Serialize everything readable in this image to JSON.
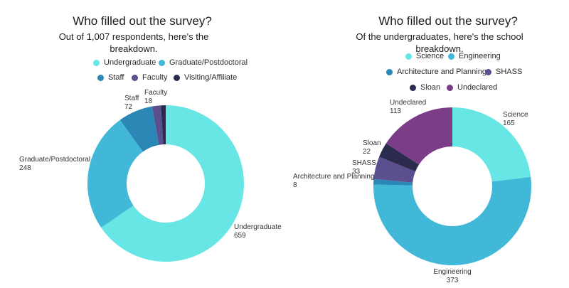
{
  "chart_data": [
    {
      "type": "pie",
      "title": "Who filled out the survey?",
      "subtitle": "Out of 1,007 respondents, here's the breakdown.",
      "categories": [
        "Undergraduate",
        "Graduate/Postdoctoral",
        "Staff",
        "Faculty",
        "Visiting/Affiliate"
      ],
      "values": [
        659,
        248,
        72,
        18,
        10
      ],
      "data_labels": [
        "Undergraduate",
        "Graduate/Postdoctoral",
        "Staff",
        "Faculty",
        ""
      ],
      "value_labels": [
        "659",
        "248",
        "72",
        "18",
        ""
      ],
      "colors": [
        "#68e6e6",
        "#41b8d7",
        "#2b87b5",
        "#5c4f8f",
        "#2b2b4d"
      ],
      "legend_position": "top",
      "donut": true
    },
    {
      "type": "pie",
      "title": "Who filled out the survey?",
      "subtitle": "Of the undergraduates, here's the school breakdown.",
      "categories": [
        "Science",
        "Engineering",
        "Architecture and Planning",
        "SHASS",
        "Sloan",
        "Undeclared"
      ],
      "values": [
        165,
        373,
        8,
        33,
        22,
        113
      ],
      "data_labels": [
        "Science",
        "Engineering",
        "Architecture and Planning",
        "SHASS",
        "Sloan",
        "Undeclared"
      ],
      "value_labels": [
        "165",
        "373",
        "8",
        "33",
        "22",
        "113"
      ],
      "colors": [
        "#68e6e6",
        "#41b8d7",
        "#2b87b5",
        "#5c4f8f",
        "#2b2b4d",
        "#7c3d88"
      ],
      "legend_position": "top",
      "donut": true
    }
  ]
}
